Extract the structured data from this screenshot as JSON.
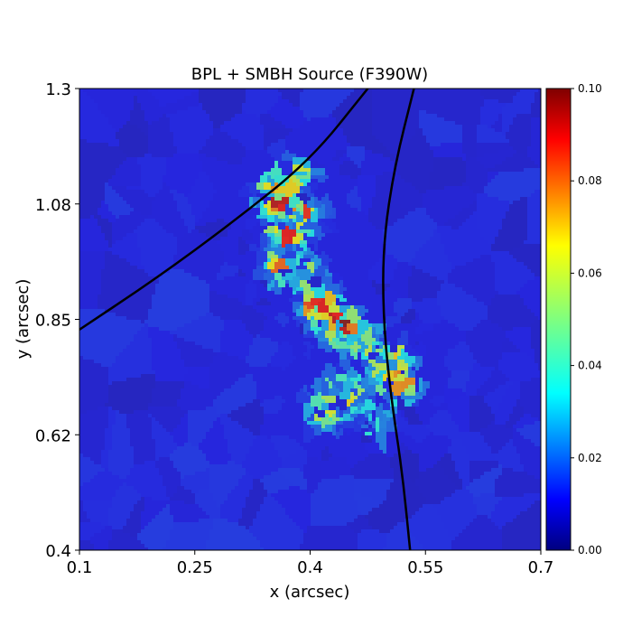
{
  "chart_data": {
    "type": "heatmap",
    "title": "BPL + SMBH Source (F390W)",
    "xlabel": "x (arcsec)",
    "ylabel": "y (arcsec)",
    "xlim": [
      0.1,
      0.7
    ],
    "ylim": [
      0.4,
      1.3
    ],
    "x_ticks": [
      "0.1",
      "0.25",
      "0.4",
      "0.55",
      "0.7"
    ],
    "y_ticks": [
      "0.4",
      "0.62",
      "0.85",
      "1.08",
      "1.3"
    ],
    "colorbar": {
      "range": [
        0.0,
        0.1
      ],
      "colormap": "jet",
      "ticks": [
        "0.00",
        "0.02",
        "0.04",
        "0.06",
        "0.08",
        "0.10"
      ]
    },
    "background_value": 0.012,
    "emission_region": [
      {
        "x": 0.375,
        "y": 1.13,
        "value": 0.075
      },
      {
        "x": 0.355,
        "y": 1.09,
        "value": 0.085
      },
      {
        "x": 0.39,
        "y": 1.06,
        "value": 0.07
      },
      {
        "x": 0.37,
        "y": 1.02,
        "value": 0.08
      },
      {
        "x": 0.36,
        "y": 0.96,
        "value": 0.065
      },
      {
        "x": 0.4,
        "y": 0.93,
        "value": 0.07
      },
      {
        "x": 0.41,
        "y": 0.88,
        "value": 0.085
      },
      {
        "x": 0.44,
        "y": 0.84,
        "value": 0.09
      },
      {
        "x": 0.47,
        "y": 0.8,
        "value": 0.06
      },
      {
        "x": 0.5,
        "y": 0.77,
        "value": 0.075
      },
      {
        "x": 0.51,
        "y": 0.73,
        "value": 0.085
      },
      {
        "x": 0.44,
        "y": 0.71,
        "value": 0.07
      },
      {
        "x": 0.42,
        "y": 0.68,
        "value": 0.075
      },
      {
        "x": 0.48,
        "y": 0.66,
        "value": 0.05
      }
    ],
    "caustics": [
      {
        "name": "",
        "points": [
          [
            0.1,
            0.83
          ],
          [
            0.2,
            0.93
          ],
          [
            0.3,
            1.04
          ],
          [
            0.4,
            1.16
          ],
          [
            0.475,
            1.3
          ]
        ]
      },
      {
        "name": "",
        "points": [
          [
            0.535,
            1.3
          ],
          [
            0.51,
            1.15
          ],
          [
            0.495,
            1.0
          ],
          [
            0.495,
            0.85
          ],
          [
            0.505,
            0.7
          ],
          [
            0.52,
            0.55
          ],
          [
            0.53,
            0.4
          ]
        ]
      }
    ]
  }
}
